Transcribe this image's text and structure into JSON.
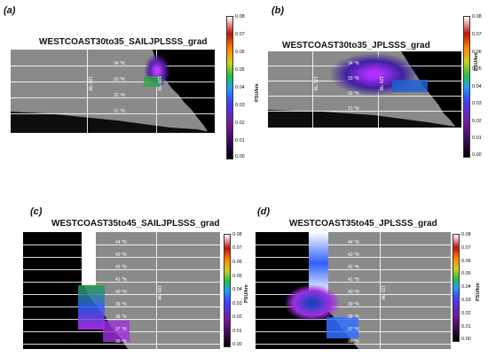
{
  "panels": {
    "a": {
      "label": "(a)",
      "title": "WESTCOAST30to35_SAILJPLSSS_grad",
      "lats": [
        "34 °N",
        "33 °N",
        "32 °N",
        "31 °N"
      ],
      "lon": "125 °W",
      "lon2": "120 °W"
    },
    "b": {
      "label": "(b)",
      "title": "WESTCOAST30to35_JPLSSS_grad",
      "lats": [
        "34 °N",
        "33 °N",
        "32 °N",
        "31 °N"
      ],
      "lon": "125 °W",
      "lon2": "120 °W"
    },
    "c": {
      "label": "(c)",
      "title": "WESTCOAST35to45_SAILJPLSSS_grad",
      "lats": [
        "44 °N",
        "43 °N",
        "42 °N",
        "41 °N",
        "40 °N",
        "39 °N",
        "38 °N",
        "37 °N",
        "36 °N"
      ],
      "lon": "120 °W"
    },
    "d": {
      "label": "(d)",
      "title": "WESTCOAST35to45_JPLSSS_grad",
      "lats": [
        "44 °N",
        "43 °N",
        "42 °N",
        "41 °N",
        "40 °N",
        "39 °N",
        "38 °N",
        "37 °N",
        "36 °N"
      ],
      "lon": "120 °W"
    }
  },
  "colorbar": {
    "ticks": [
      "0.08",
      "0.07",
      "0.06",
      "0.05",
      "0.04",
      "0.03",
      "0.02",
      "0.01",
      "0.00"
    ],
    "unit": "PSU/km"
  }
}
